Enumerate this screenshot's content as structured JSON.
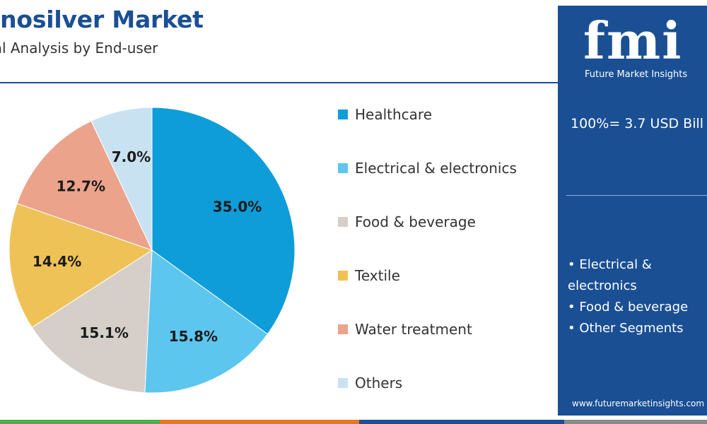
{
  "header": {
    "title": "anosilver Market",
    "subtitle": "bal Analysis by End-user"
  },
  "chart_data": {
    "type": "pie",
    "categories": [
      "Healthcare",
      "Electrical & electronics",
      "Food & beverage",
      "Textile",
      "Water treatment",
      "Others"
    ],
    "values": [
      35.0,
      15.8,
      15.1,
      14.4,
      12.7,
      7.0
    ],
    "labels": [
      "35.0%",
      "15.8%",
      "15.1%",
      "14.4%",
      "12.7%",
      "7.0%"
    ],
    "colors": [
      "#0e9dd8",
      "#5cc6ef",
      "#d6cfc9",
      "#efc257",
      "#eba38c",
      "#c9e2f1"
    ],
    "legend_position": "right"
  },
  "side_panel": {
    "logo_text": "fmi",
    "logo_tagline": "Future Market Insights",
    "total": "100%= 3.7 USD Bill",
    "segments": [
      "• Electrical & electronics",
      "• Food & beverage",
      "• Other Segments"
    ],
    "website": "www.futuremarketinsights.com",
    "background_color": "#1a4f94"
  },
  "bottom_bar_colors": [
    "#4cae4c",
    "#e87722",
    "#1a4f94",
    "#8a8a8a"
  ]
}
